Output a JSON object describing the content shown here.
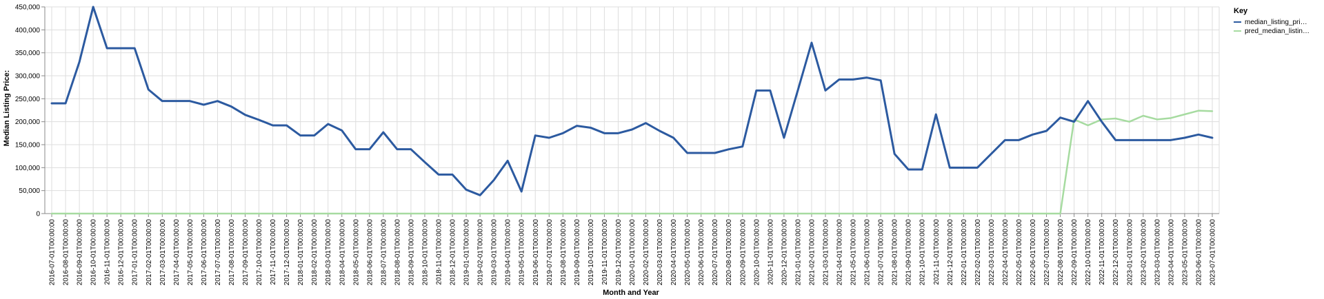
{
  "chart_data": {
    "type": "line",
    "xlabel": "Month and Year",
    "ylabel": "Median Listing Price:",
    "ylim": [
      0,
      450000
    ],
    "yticks": [
      "0",
      "50,000",
      "100,000",
      "150,000",
      "200,000",
      "250,000",
      "300,000",
      "350,000",
      "400,000",
      "450,000"
    ],
    "ytick_values": [
      0,
      50000,
      100000,
      150000,
      200000,
      250000,
      300000,
      350000,
      400000,
      450000
    ],
    "grid": true,
    "legend_title": "Key",
    "legend_position": "right",
    "categories": [
      "2016-07-01T00:00:00",
      "2016-08-01T00:00:00",
      "2016-09-01T00:00:00",
      "2016-10-01T00:00:00",
      "2016-11-01T00:00:00",
      "2016-12-01T00:00:00",
      "2017-01-01T00:00:00",
      "2017-02-01T00:00:00",
      "2017-03-01T00:00:00",
      "2017-04-01T00:00:00",
      "2017-05-01T00:00:00",
      "2017-06-01T00:00:00",
      "2017-07-01T00:00:00",
      "2017-08-01T00:00:00",
      "2017-09-01T00:00:00",
      "2017-10-01T00:00:00",
      "2017-11-01T00:00:00",
      "2017-12-01T00:00:00",
      "2018-01-01T00:00:00",
      "2018-02-01T00:00:00",
      "2018-03-01T00:00:00",
      "2018-04-01T00:00:00",
      "2018-05-01T00:00:00",
      "2018-06-01T00:00:00",
      "2018-07-01T00:00:00",
      "2018-08-01T00:00:00",
      "2018-09-01T00:00:00",
      "2018-10-01T00:00:00",
      "2018-11-01T00:00:00",
      "2018-12-01T00:00:00",
      "2019-01-01T00:00:00",
      "2019-02-01T00:00:00",
      "2019-03-01T00:00:00",
      "2019-04-01T00:00:00",
      "2019-05-01T00:00:00",
      "2019-06-01T00:00:00",
      "2019-07-01T00:00:00",
      "2019-08-01T00:00:00",
      "2019-09-01T00:00:00",
      "2019-10-01T00:00:00",
      "2019-11-01T00:00:00",
      "2019-12-01T00:00:00",
      "2020-01-01T00:00:00",
      "2020-02-01T00:00:00",
      "2020-03-01T00:00:00",
      "2020-04-01T00:00:00",
      "2020-05-01T00:00:00",
      "2020-06-01T00:00:00",
      "2020-07-01T00:00:00",
      "2020-08-01T00:00:00",
      "2020-09-01T00:00:00",
      "2020-10-01T00:00:00",
      "2020-11-01T00:00:00",
      "2020-12-01T00:00:00",
      "2021-01-01T00:00:00",
      "2021-02-01T00:00:00",
      "2021-03-01T00:00:00",
      "2021-04-01T00:00:00",
      "2021-05-01T00:00:00",
      "2021-06-01T00:00:00",
      "2021-07-01T00:00:00",
      "2021-08-01T00:00:00",
      "2021-09-01T00:00:00",
      "2021-10-01T00:00:00",
      "2021-11-01T00:00:00",
      "2021-12-01T00:00:00",
      "2022-01-01T00:00:00",
      "2022-02-01T00:00:00",
      "2022-03-01T00:00:00",
      "2022-04-01T00:00:00",
      "2022-05-01T00:00:00",
      "2022-06-01T00:00:00",
      "2022-07-01T00:00:00",
      "2022-08-01T00:00:00",
      "2022-09-01T00:00:00",
      "2022-10-01T00:00:00",
      "2022-11-01T00:00:00",
      "2022-12-01T00:00:00",
      "2023-01-01T00:00:00",
      "2023-02-01T00:00:00",
      "2023-03-01T00:00:00",
      "2023-04-01T00:00:00",
      "2023-05-01T00:00:00",
      "2023-06-01T00:00:00",
      "2023-07-01T00:00:00"
    ],
    "series": [
      {
        "name": "median_listing_pri…",
        "color": "#2c5aa0",
        "values": [
          240000,
          240000,
          330000,
          450000,
          360000,
          360000,
          360000,
          270000,
          245000,
          245000,
          245000,
          237000,
          245000,
          233000,
          215000,
          204000,
          192000,
          192000,
          170000,
          170000,
          195000,
          181000,
          140000,
          140000,
          177000,
          140000,
          140000,
          112000,
          85000,
          85000,
          52000,
          40000,
          73000,
          115000,
          48000,
          170000,
          165000,
          175000,
          191000,
          187000,
          175000,
          175000,
          183000,
          197000,
          180000,
          165000,
          132000,
          132000,
          132000,
          140000,
          146000,
          268000,
          268000,
          165000,
          268000,
          372000,
          268000,
          292000,
          292000,
          296000,
          290000,
          130000,
          96000,
          96000,
          216000,
          100000,
          100000,
          100000,
          130000,
          160000,
          160000,
          172000,
          180000,
          209000,
          200000,
          245000,
          200000,
          160000,
          160000,
          160000,
          160000,
          160000,
          165000,
          172000,
          165000
        ]
      },
      {
        "name": "pred_median_listin…",
        "color": "#a6dba0",
        "values": [
          0,
          0,
          0,
          0,
          0,
          0,
          0,
          0,
          0,
          0,
          0,
          0,
          0,
          0,
          0,
          0,
          0,
          0,
          0,
          0,
          0,
          0,
          0,
          0,
          0,
          0,
          0,
          0,
          0,
          0,
          0,
          0,
          0,
          0,
          0,
          0,
          0,
          0,
          0,
          0,
          0,
          0,
          0,
          0,
          0,
          0,
          0,
          0,
          0,
          0,
          0,
          0,
          0,
          0,
          0,
          0,
          0,
          0,
          0,
          0,
          0,
          0,
          0,
          0,
          0,
          0,
          0,
          0,
          0,
          0,
          0,
          0,
          0,
          0,
          205000,
          192000,
          205000,
          207000,
          200000,
          213000,
          205000,
          208000,
          216000,
          224000,
          223000
        ]
      }
    ]
  }
}
